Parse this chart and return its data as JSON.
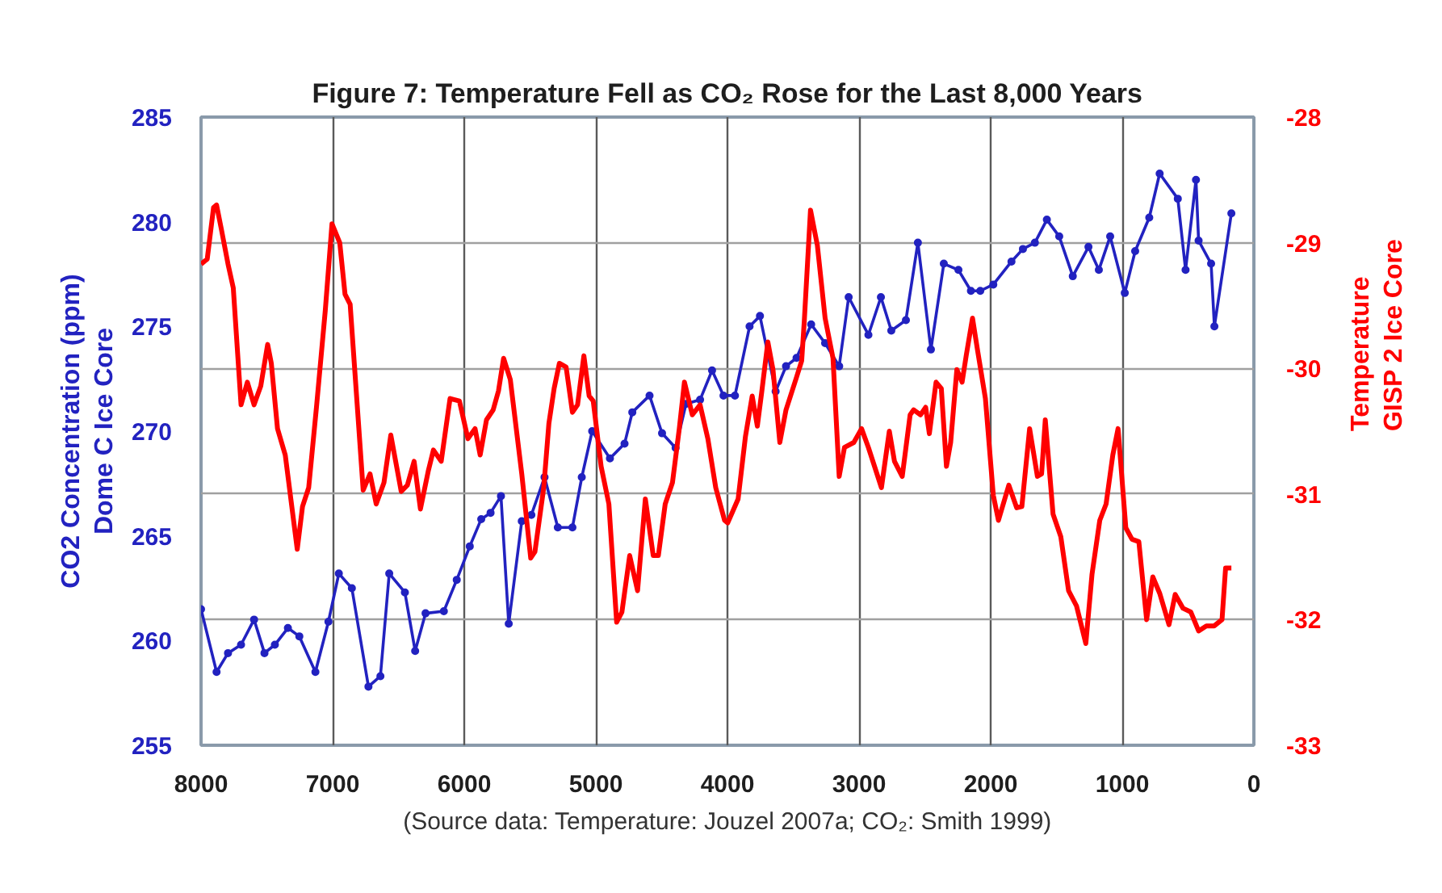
{
  "chart_data": {
    "type": "line",
    "title": "Figure 7: Temperature Fell as CO₂ Rose for the Last 8,000 Years",
    "ylabel": "CO2 Concentration (ppm)\nDome C Ice Core",
    "y2label": "Temperature\nGISP 2 Ice Core",
    "annotations": [
      "(Source data: Temperature: Jouzel 2007a; CO₂: Smith 1999)"
    ],
    "xlim": [
      8000,
      0
    ],
    "xticks": [
      8000,
      7000,
      6000,
      5000,
      4000,
      3000,
      2000,
      1000,
      0
    ],
    "ylim": [
      255,
      285
    ],
    "yticks": [
      255,
      260,
      265,
      270,
      275,
      280,
      285
    ],
    "y2lim": [
      -33,
      -28
    ],
    "y2ticks": [
      -33,
      -32,
      -31,
      -30,
      -29,
      -28
    ],
    "grid": true,
    "line_style": "solid",
    "series": [
      {
        "color": "#2222c0",
        "marker": "circle",
        "x": [
          8000,
          7882,
          7795,
          7696,
          7597,
          7518,
          7439,
          7340,
          7253,
          7131,
          7032,
          6953,
          6854,
          6728,
          6637,
          6570,
          6451,
          6373,
          6294,
          6155,
          6057,
          5958,
          5871,
          5800,
          5721,
          5662,
          5563,
          5490,
          5390,
          5289,
          5178,
          5107,
          5028,
          4893,
          4782,
          4723,
          4592,
          4497,
          4394,
          4315,
          4208,
          4117,
          4030,
          3943,
          3832,
          3753,
          3634,
          3555,
          3475,
          3364,
          3258,
          3151,
          3079,
          2929,
          2834,
          2755,
          2644,
          2553,
          2454,
          2356,
          2245,
          2150,
          2079,
          1980,
          1842,
          1755,
          1664,
          1573,
          1479,
          1376,
          1257,
          1178,
          1092,
          981,
          902,
          795,
          716,
          578,
          519,
          440,
          420,
          325,
          300,
          171
        ],
        "values": [
          261.5,
          258.5,
          259.4,
          259.8,
          261.0,
          259.4,
          259.8,
          260.6,
          260.2,
          258.5,
          260.9,
          263.2,
          262.5,
          257.8,
          258.3,
          263.2,
          262.3,
          259.5,
          261.3,
          261.4,
          262.9,
          264.5,
          265.8,
          266.1,
          266.9,
          260.8,
          265.7,
          266.0,
          267.8,
          265.4,
          265.4,
          267.8,
          270.0,
          268.7,
          269.4,
          270.9,
          271.7,
          269.9,
          269.2,
          271.3,
          271.5,
          272.9,
          271.7,
          271.7,
          275.0,
          275.5,
          271.9,
          273.1,
          273.5,
          275.1,
          274.2,
          273.1,
          276.4,
          274.6,
          276.4,
          274.8,
          275.3,
          279.0,
          273.9,
          278.0,
          277.7,
          276.7,
          276.7,
          277.0,
          278.1,
          278.7,
          279.0,
          280.1,
          279.3,
          277.4,
          278.8,
          277.7,
          279.3,
          276.6,
          278.6,
          280.2,
          282.3,
          281.1,
          277.7,
          282.0,
          279.1,
          278.0,
          275.0,
          280.4
        ]
      },
      {
        "color": "#ff0000",
        "axis": "y2",
        "marker": "none",
        "x": [
          8000,
          7953,
          7905,
          7882,
          7846,
          7795,
          7755,
          7696,
          7648,
          7597,
          7546,
          7494,
          7466,
          7419,
          7360,
          7269,
          7229,
          7182,
          7123,
          7056,
          7005,
          6946,
          6906,
          6867,
          6768,
          6716,
          6669,
          6610,
          6558,
          6479,
          6432,
          6381,
          6333,
          6274,
          6234,
          6175,
          6108,
          6037,
          5972,
          5918,
          5879,
          5831,
          5780,
          5740,
          5701,
          5650,
          5563,
          5495,
          5463,
          5396,
          5357,
          5317,
          5277,
          5226,
          5178,
          5139,
          5091,
          5051,
          5020,
          4960,
          4901,
          4842,
          4802,
          4743,
          4683,
          4624,
          4564,
          4525,
          4473,
          4418,
          4366,
          4327,
          4267,
          4208,
          4149,
          4089,
          4022,
          3998,
          3919,
          3863,
          3812,
          3773,
          3741,
          3693,
          3654,
          3602,
          3555,
          3475,
          3436,
          3416,
          3369,
          3317,
          3258,
          3198,
          3151,
          3111,
          3040,
          2981,
          2929,
          2830,
          2770,
          2731,
          2672,
          2612,
          2585,
          2533,
          2494,
          2466,
          2415,
          2375,
          2336,
          2304,
          2257,
          2217,
          2186,
          2138,
          2099,
          2040,
          1980,
          1941,
          1862,
          1802,
          1763,
          1704,
          1645,
          1613,
          1585,
          1526,
          1467,
          1408,
          1348,
          1277,
          1230,
          1171,
          1123,
          1072,
          1032,
          973,
          926,
          874,
          815,
          768,
          716,
          645,
          598,
          538,
          479,
          420,
          361,
          301,
          242,
          215,
          171
        ],
        "values": [
          -29.17,
          -29.13,
          -28.72,
          -28.7,
          -28.89,
          -29.17,
          -29.36,
          -30.29,
          -30.11,
          -30.29,
          -30.14,
          -29.81,
          -29.96,
          -30.48,
          -30.69,
          -31.44,
          -31.1,
          -30.95,
          -30.31,
          -29.54,
          -28.85,
          -29.0,
          -29.41,
          -29.49,
          -30.97,
          -30.84,
          -31.08,
          -30.91,
          -30.53,
          -30.98,
          -30.93,
          -30.74,
          -31.12,
          -30.82,
          -30.65,
          -30.74,
          -30.24,
          -30.26,
          -30.56,
          -30.48,
          -30.69,
          -30.41,
          -30.33,
          -30.18,
          -29.92,
          -30.09,
          -30.84,
          -31.51,
          -31.46,
          -30.95,
          -30.44,
          -30.16,
          -29.96,
          -29.99,
          -30.35,
          -30.29,
          -29.9,
          -30.22,
          -30.26,
          -30.78,
          -31.08,
          -32.02,
          -31.94,
          -31.49,
          -31.77,
          -31.04,
          -31.49,
          -31.49,
          -31.08,
          -30.91,
          -30.48,
          -30.11,
          -30.37,
          -30.29,
          -30.56,
          -30.95,
          -31.21,
          -31.23,
          -31.04,
          -30.54,
          -30.22,
          -30.46,
          -30.2,
          -29.79,
          -30.01,
          -30.59,
          -30.33,
          -30.07,
          -29.94,
          -29.62,
          -28.74,
          -29.02,
          -29.6,
          -29.92,
          -30.86,
          -30.63,
          -30.59,
          -30.48,
          -30.63,
          -30.95,
          -30.5,
          -30.74,
          -30.86,
          -30.37,
          -30.33,
          -30.37,
          -30.31,
          -30.52,
          -30.11,
          -30.16,
          -30.78,
          -30.59,
          -30.01,
          -30.11,
          -29.9,
          -29.6,
          -29.86,
          -30.24,
          -31.01,
          -31.21,
          -30.93,
          -31.11,
          -31.1,
          -30.48,
          -30.86,
          -30.84,
          -30.41,
          -31.16,
          -31.34,
          -31.77,
          -31.89,
          -32.19,
          -31.64,
          -31.21,
          -31.08,
          -30.69,
          -30.48,
          -31.27,
          -31.36,
          -31.38,
          -32.0,
          -31.66,
          -31.79,
          -32.04,
          -31.8,
          -31.91,
          -31.94,
          -32.09,
          -32.05,
          -32.05,
          -32.0,
          -31.59,
          -31.59
        ]
      }
    ]
  }
}
